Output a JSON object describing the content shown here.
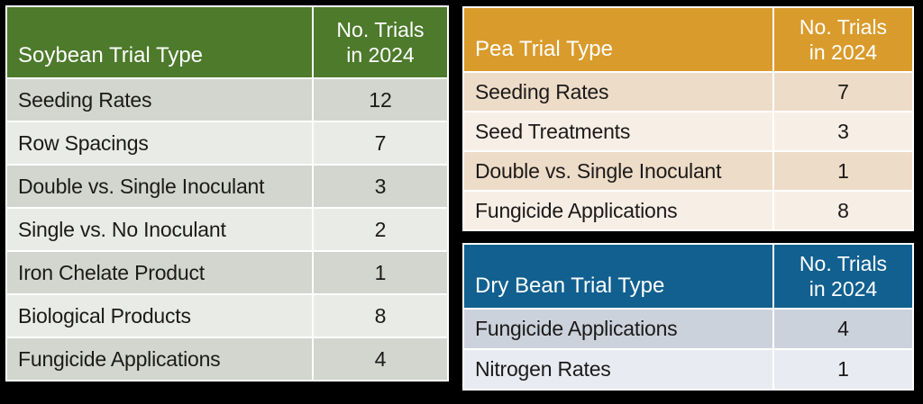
{
  "colors": {
    "background": "#000000",
    "gridline": "#ffffff",
    "soybean_header": "#4d7a2b",
    "pea_header": "#d99b2c",
    "dry_bean_header": "#11608f",
    "soybean_row_dark": "#d2d6ce",
    "soybean_row_light": "#e9ebe6",
    "pea_row_dark": "#eddcc8",
    "pea_row_light": "#f7efe6",
    "dry_bean_row_dark": "#ccd2dc",
    "dry_bean_row_light": "#e8ebf1",
    "header_text": "#ffffff",
    "body_text": "#1c1a19"
  },
  "chart_data": [
    {
      "type": "table",
      "title": "Soybean Trial Type",
      "value_header": "No. Trials in 2024",
      "value_header_lines": [
        "No. Trials",
        "in 2024"
      ],
      "header_color": "#4d7a2b",
      "rows": [
        {
          "label": "Seeding Rates",
          "value": 12
        },
        {
          "label": "Row Spacings",
          "value": 7
        },
        {
          "label": "Double vs. Single Inoculant",
          "value": 3
        },
        {
          "label": "Single vs. No Inoculant",
          "value": 2
        },
        {
          "label": "Iron Chelate Product",
          "value": 1
        },
        {
          "label": "Biological Products",
          "value": 8
        },
        {
          "label": "Fungicide Applications",
          "value": 4
        }
      ]
    },
    {
      "type": "table",
      "title": "Pea Trial Type",
      "value_header": "No. Trials in 2024",
      "value_header_lines": [
        "No. Trials",
        "in 2024"
      ],
      "header_color": "#d99b2c",
      "rows": [
        {
          "label": "Seeding Rates",
          "value": 7
        },
        {
          "label": "Seed Treatments",
          "value": 3
        },
        {
          "label": "Double vs. Single Inoculant",
          "value": 1
        },
        {
          "label": "Fungicide Applications",
          "value": 8
        }
      ]
    },
    {
      "type": "table",
      "title": "Dry Bean Trial Type",
      "value_header": "No. Trials in 2024",
      "value_header_lines": [
        "No. Trials",
        "in 2024"
      ],
      "header_color": "#11608f",
      "rows": [
        {
          "label": "Fungicide Applications",
          "value": 4
        },
        {
          "label": "Nitrogen Rates",
          "value": 1
        }
      ]
    }
  ]
}
